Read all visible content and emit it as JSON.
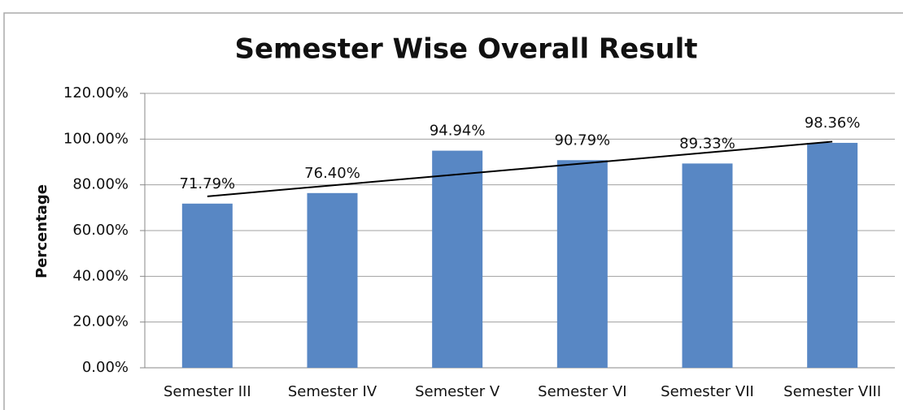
{
  "chart_data": {
    "type": "bar",
    "title": "Semester Wise Overall Result",
    "y_label": "Percentage",
    "categories": [
      "Semester III",
      "Semester IV",
      "Semester V",
      "Semester VI",
      "Semester VII",
      "Semester VIII"
    ],
    "values": [
      71.79,
      76.4,
      94.94,
      90.79,
      89.33,
      98.36
    ],
    "value_labels": [
      "71.79%",
      "76.40%",
      "94.94%",
      "90.79%",
      "89.33%",
      "98.36%"
    ],
    "color": "#5887c4",
    "ylim": [
      0,
      120
    ],
    "yticks": [
      {
        "value": 0,
        "label": "0.00%"
      },
      {
        "value": 20,
        "label": "20.00%"
      },
      {
        "value": 40,
        "label": "40.00%"
      },
      {
        "value": 60,
        "label": "60.00%"
      },
      {
        "value": 80,
        "label": "80.00%"
      },
      {
        "value": 100,
        "label": "100.00%"
      },
      {
        "value": 120,
        "label": "120.00%"
      }
    ],
    "grid": true,
    "trendline": "linear"
  }
}
